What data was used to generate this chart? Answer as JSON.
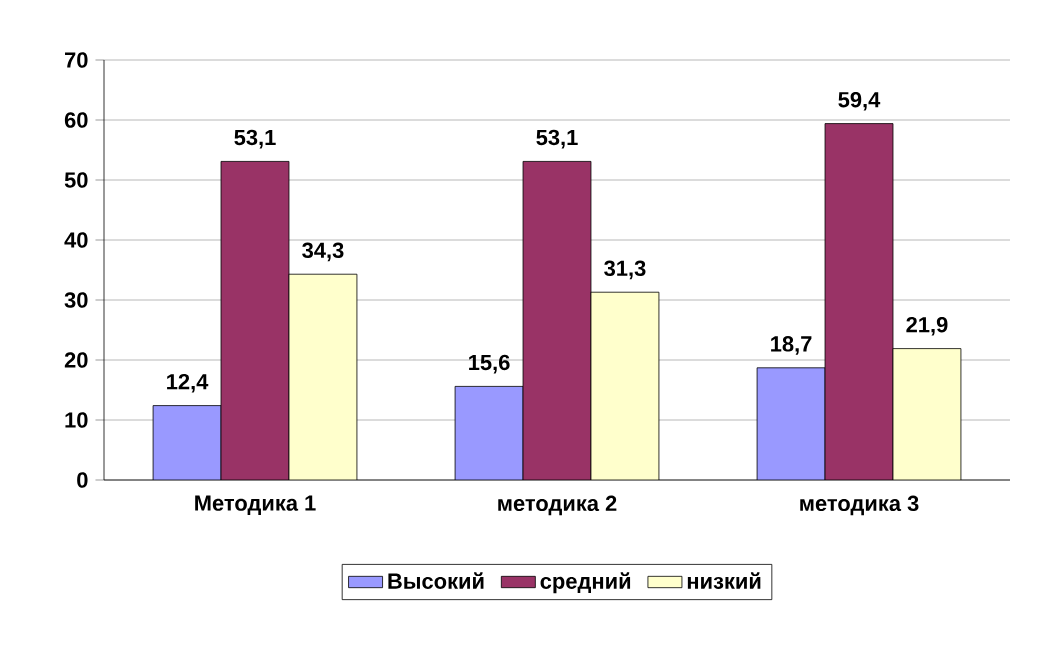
{
  "chart_data": {
    "type": "bar",
    "categories": [
      "Методика 1",
      "методика 2",
      "методика 3"
    ],
    "series": [
      {
        "name": "Высокий",
        "color": "#9999ff",
        "values": [
          12.4,
          15.6,
          18.7
        ],
        "value_labels": [
          "12,4",
          "15,6",
          "18,7"
        ]
      },
      {
        "name": "средний",
        "color": "#993366",
        "values": [
          53.1,
          53.1,
          59.4
        ],
        "value_labels": [
          "53,1",
          "53,1",
          "59,4"
        ]
      },
      {
        "name": "низкий",
        "color": "#ffffcc",
        "values": [
          34.3,
          31.3,
          21.9
        ],
        "value_labels": [
          "34,3",
          "31,3",
          "21,9"
        ]
      }
    ],
    "ylim": [
      0,
      70
    ],
    "yticks": [
      0,
      10,
      20,
      30,
      40,
      50,
      60,
      70
    ],
    "grid": "y",
    "legend": "bottom"
  }
}
